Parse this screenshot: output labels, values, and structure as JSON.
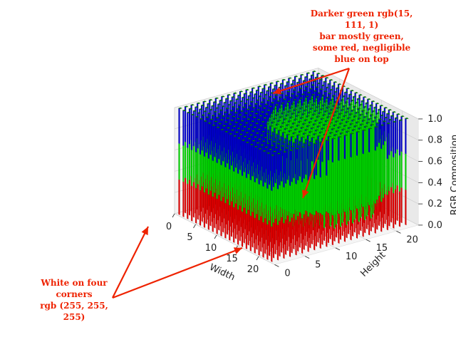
{
  "chart_data": {
    "type": "bar3d",
    "title": "",
    "xlabel": "Width",
    "ylabel": "Height",
    "zlabel": "RGB Composition",
    "xticks": [
      "0",
      "5",
      "10",
      "15",
      "20"
    ],
    "yticks": [
      "0",
      "5",
      "10",
      "15",
      "20"
    ],
    "zticks": [
      "0.0",
      "0.2",
      "0.4",
      "0.6",
      "0.8",
      "1.0"
    ],
    "xlim": [
      0,
      23
    ],
    "ylim": [
      0,
      23
    ],
    "zlim": [
      0,
      1.0
    ],
    "grid": true,
    "stack_order": [
      "red",
      "green",
      "blue"
    ],
    "series_colors": {
      "red": "#e00000",
      "green": "#00d400",
      "blue": "#0000cc"
    },
    "inner_region": {
      "shape": "circle",
      "center": [
        14,
        14
      ],
      "radius": 8.5,
      "rgb": [
        15,
        111,
        1
      ],
      "stack": [
        0.12,
        0.87,
        0.01
      ]
    },
    "outer_region": {
      "rgb": [
        255,
        255,
        255
      ],
      "stack": [
        0.33,
        0.34,
        0.33
      ]
    },
    "boundary_rim": {
      "stack": [
        0.28,
        0.5,
        0.22
      ]
    }
  },
  "annotations": {
    "top": [
      "Darker green rgb(15,",
      "111, 1)",
      "bar mostly green,",
      "some red, negligible",
      "blue on top"
    ],
    "bottom": [
      "White on four",
      "corners",
      "rgb (255, 255,",
      "255)"
    ]
  }
}
